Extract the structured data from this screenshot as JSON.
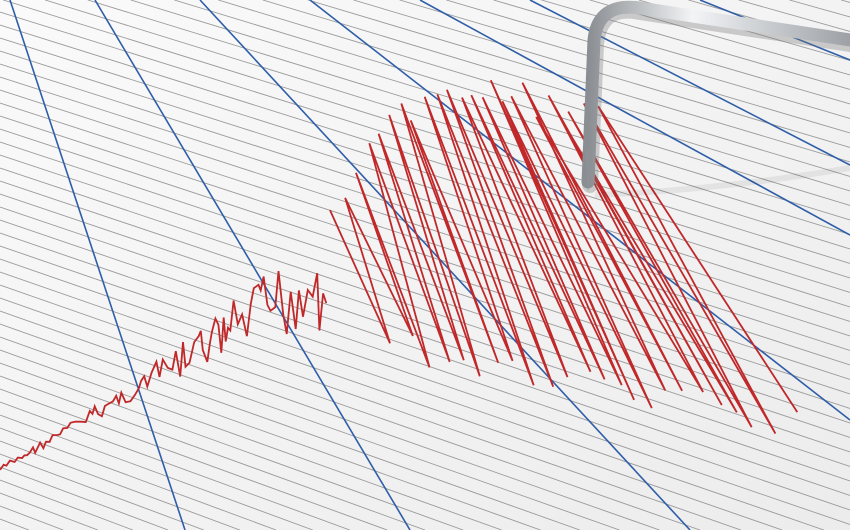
{
  "colors": {
    "paper": "#f5f5f5",
    "grid_line": "#9a9a9a",
    "major_line": "#2f5ea8",
    "trace": "#c0282a",
    "needle": "#b8bcc0"
  }
}
